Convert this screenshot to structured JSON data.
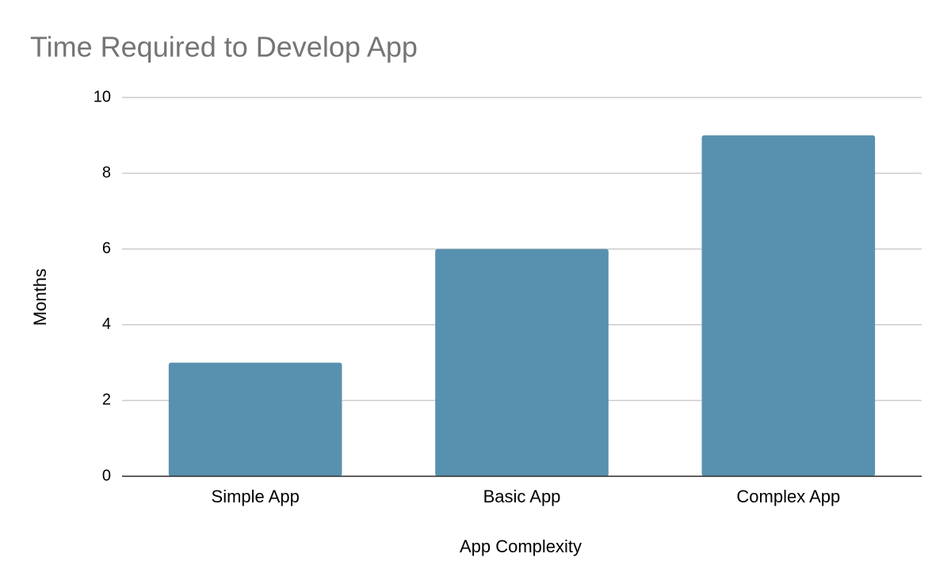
{
  "chart_data": {
    "type": "bar",
    "title": "Time Required to Develop App",
    "x_label": "App Complexity",
    "y_label": "Months",
    "categories": [
      "Simple App",
      "Basic App",
      "Complex App"
    ],
    "values": [
      3,
      6,
      9
    ],
    "color": "#5891af",
    "ylim": [
      0,
      10
    ],
    "yticks": [
      0,
      2,
      4,
      6,
      8,
      10
    ],
    "grid": true
  }
}
